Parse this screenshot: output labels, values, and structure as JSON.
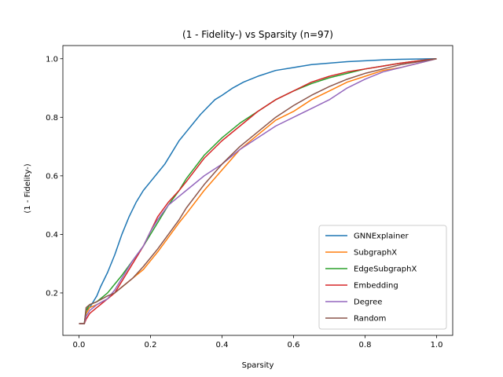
{
  "chart_data": {
    "type": "line",
    "title": "(1 - Fidelity-) vs Sparsity (n=97)",
    "xlabel": "Sparsity",
    "ylabel": "(1 - Fidelity-)",
    "xlim": [
      -0.045,
      1.045
    ],
    "ylim": [
      0.055,
      1.045
    ],
    "xticks": [
      0.0,
      0.2,
      0.4,
      0.6,
      0.8,
      1.0
    ],
    "xtick_labels": [
      "0.0",
      "0.2",
      "0.4",
      "0.6",
      "0.8",
      "1.0"
    ],
    "yticks": [
      0.2,
      0.4,
      0.6,
      0.8,
      1.0
    ],
    "ytick_labels": [
      "0.2",
      "0.4",
      "0.6",
      "0.8",
      "1.0"
    ],
    "grid": false,
    "legend_position": "lower-right",
    "series": [
      {
        "name": "GNNExplainer",
        "color": "#1f77b4",
        "x": [
          0.0,
          0.015,
          0.02,
          0.03,
          0.04,
          0.05,
          0.06,
          0.08,
          0.1,
          0.12,
          0.14,
          0.16,
          0.18,
          0.2,
          0.22,
          0.24,
          0.26,
          0.28,
          0.3,
          0.32,
          0.34,
          0.36,
          0.38,
          0.4,
          0.43,
          0.46,
          0.5,
          0.55,
          0.6,
          0.65,
          0.7,
          0.75,
          0.8,
          0.85,
          0.9,
          0.95,
          1.0
        ],
        "y": [
          0.095,
          0.095,
          0.14,
          0.15,
          0.17,
          0.19,
          0.22,
          0.27,
          0.33,
          0.4,
          0.46,
          0.51,
          0.55,
          0.58,
          0.61,
          0.64,
          0.68,
          0.72,
          0.75,
          0.78,
          0.81,
          0.835,
          0.86,
          0.875,
          0.9,
          0.92,
          0.94,
          0.96,
          0.97,
          0.98,
          0.985,
          0.99,
          0.993,
          0.996,
          0.998,
          0.999,
          1.0
        ]
      },
      {
        "name": "SubgraphX",
        "color": "#ff7f0e",
        "x": [
          0.0,
          0.015,
          0.02,
          0.03,
          0.05,
          0.08,
          0.1,
          0.12,
          0.15,
          0.18,
          0.2,
          0.22,
          0.25,
          0.28,
          0.3,
          0.35,
          0.4,
          0.45,
          0.5,
          0.55,
          0.6,
          0.65,
          0.7,
          0.75,
          0.8,
          0.85,
          0.9,
          0.95,
          1.0
        ],
        "y": [
          0.095,
          0.095,
          0.13,
          0.15,
          0.16,
          0.18,
          0.2,
          0.22,
          0.25,
          0.28,
          0.31,
          0.34,
          0.39,
          0.44,
          0.47,
          0.55,
          0.62,
          0.69,
          0.74,
          0.79,
          0.82,
          0.86,
          0.89,
          0.92,
          0.94,
          0.96,
          0.97,
          0.985,
          1.0
        ]
      },
      {
        "name": "EdgeSubgraphX",
        "color": "#2ca02c",
        "x": [
          0.0,
          0.015,
          0.02,
          0.03,
          0.05,
          0.08,
          0.1,
          0.12,
          0.15,
          0.18,
          0.2,
          0.22,
          0.25,
          0.28,
          0.3,
          0.35,
          0.4,
          0.45,
          0.5,
          0.55,
          0.6,
          0.65,
          0.7,
          0.75,
          0.8,
          0.85,
          0.9,
          0.95,
          1.0
        ],
        "y": [
          0.095,
          0.095,
          0.14,
          0.16,
          0.17,
          0.2,
          0.23,
          0.26,
          0.31,
          0.36,
          0.4,
          0.44,
          0.5,
          0.55,
          0.59,
          0.67,
          0.73,
          0.78,
          0.82,
          0.86,
          0.89,
          0.915,
          0.935,
          0.95,
          0.965,
          0.975,
          0.985,
          0.993,
          1.0
        ]
      },
      {
        "name": "Embedding",
        "color": "#d62728",
        "x": [
          0.0,
          0.015,
          0.02,
          0.03,
          0.05,
          0.08,
          0.1,
          0.12,
          0.15,
          0.18,
          0.2,
          0.22,
          0.25,
          0.28,
          0.3,
          0.35,
          0.4,
          0.45,
          0.5,
          0.55,
          0.6,
          0.65,
          0.7,
          0.75,
          0.8,
          0.85,
          0.9,
          0.95,
          1.0
        ],
        "y": [
          0.095,
          0.095,
          0.11,
          0.13,
          0.15,
          0.18,
          0.2,
          0.24,
          0.3,
          0.36,
          0.41,
          0.46,
          0.51,
          0.55,
          0.58,
          0.66,
          0.72,
          0.77,
          0.82,
          0.86,
          0.89,
          0.92,
          0.94,
          0.955,
          0.965,
          0.975,
          0.985,
          0.993,
          1.0
        ]
      },
      {
        "name": "Degree",
        "color": "#9467bd",
        "x": [
          0.0,
          0.015,
          0.02,
          0.03,
          0.05,
          0.08,
          0.1,
          0.12,
          0.15,
          0.18,
          0.2,
          0.22,
          0.25,
          0.28,
          0.3,
          0.35,
          0.4,
          0.45,
          0.5,
          0.55,
          0.6,
          0.65,
          0.7,
          0.75,
          0.8,
          0.85,
          0.9,
          0.95,
          1.0
        ],
        "y": [
          0.095,
          0.095,
          0.12,
          0.14,
          0.16,
          0.18,
          0.21,
          0.25,
          0.31,
          0.36,
          0.41,
          0.45,
          0.5,
          0.53,
          0.55,
          0.6,
          0.64,
          0.69,
          0.73,
          0.77,
          0.8,
          0.83,
          0.86,
          0.9,
          0.93,
          0.955,
          0.97,
          0.985,
          1.0
        ]
      },
      {
        "name": "Random",
        "color": "#8c564b",
        "x": [
          0.0,
          0.015,
          0.02,
          0.03,
          0.05,
          0.08,
          0.1,
          0.12,
          0.15,
          0.18,
          0.2,
          0.22,
          0.25,
          0.28,
          0.3,
          0.35,
          0.4,
          0.45,
          0.5,
          0.55,
          0.6,
          0.65,
          0.7,
          0.75,
          0.8,
          0.85,
          0.9,
          0.95,
          1.0
        ],
        "y": [
          0.095,
          0.095,
          0.15,
          0.16,
          0.17,
          0.19,
          0.2,
          0.22,
          0.25,
          0.29,
          0.32,
          0.35,
          0.4,
          0.45,
          0.49,
          0.57,
          0.64,
          0.7,
          0.75,
          0.8,
          0.84,
          0.875,
          0.905,
          0.93,
          0.95,
          0.965,
          0.98,
          0.99,
          1.0
        ]
      }
    ]
  }
}
